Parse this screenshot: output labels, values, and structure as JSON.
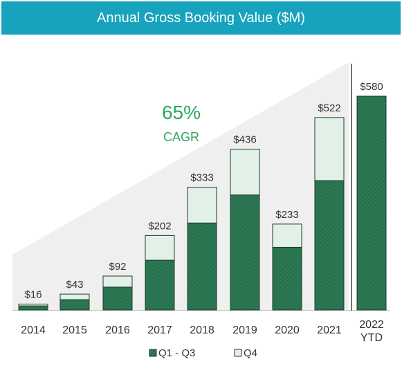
{
  "colors": {
    "title_bg": "#17a2bd",
    "q1q3_fill": "#2d7a55",
    "q1q3_hatch": "#1f5e3e",
    "q4_fill": "#e1f1e8",
    "bar_stroke": "#1d3a2c",
    "triangle": "#efefef",
    "cagr_text": "#2aa85e",
    "text": "#333333"
  },
  "chart_data": {
    "type": "bar",
    "title": "Annual Gross Booking Value ($M)",
    "categories": [
      "2014",
      "2015",
      "2016",
      "2017",
      "2018",
      "2019",
      "2020",
      "2021",
      "2022 YTD"
    ],
    "series": [
      {
        "name": "Q1 - Q3",
        "values": [
          11,
          28,
          62,
          135,
          236,
          312,
          170,
          351,
          580
        ]
      },
      {
        "name": "Q4",
        "values": [
          5,
          15,
          30,
          67,
          97,
          124,
          63,
          171,
          null
        ]
      }
    ],
    "totals": [
      "$16",
      "$43",
      "$92",
      "$202",
      "$333",
      "$436",
      "$233",
      "$522",
      "$580"
    ],
    "ylim": [
      0,
      580
    ],
    "annotation": {
      "value": "65%",
      "label": "CAGR"
    },
    "legend_position": "bottom-center",
    "grid": false
  }
}
